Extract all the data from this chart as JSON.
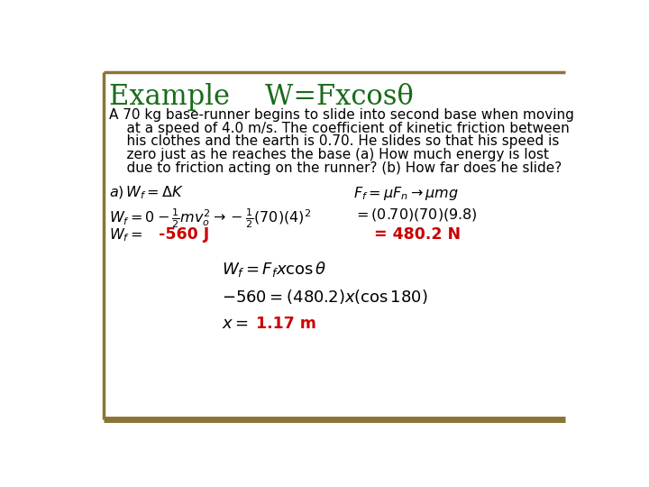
{
  "background_color": "#ffffff",
  "border_color": "#8B7536",
  "title": "Example    W=Fxcosθ",
  "title_color": "#1a6b1a",
  "title_fontsize": 22,
  "body_lines": [
    "A 70 kg base-runner begins to slide into second base when moving",
    "    at a speed of 4.0 m/s. The coefficient of kinetic friction between",
    "    his clothes and the earth is 0.70. He slides so that his speed is",
    "    zero just as he reaches the base (a) How much energy is lost",
    "    due to friction acting on the runner? (b) How far does he slide?"
  ],
  "body_fontsize": 11.0,
  "body_color": "#000000",
  "eq1a": "$a)\\,W_f = \\Delta K$",
  "eq1b": "$F_f = \\mu F_n \\rightarrow \\mu mg$",
  "eq2a": "$W_f = 0 - \\frac{1}{2}mv_o^2 \\rightarrow -\\frac{1}{2}(70)(4)^2$",
  "eq2b": "$= (0.70)(70)(9.8)$",
  "eq3a": "$W_f =$",
  "eq3a_answer": "-560 J",
  "eq3a_answer_color": "#cc0000",
  "eq3b_answer": "= 480.2 N",
  "eq3b_answer_color": "#cc0000",
  "eq4": "$W_f = F_f x\\cos\\theta$",
  "eq5": "$-560 = (480.2)x(\\cos 180)$",
  "eq6_prefix": "$x =$",
  "eq6_answer": "1.17 m",
  "eq6_answer_color": "#cc0000",
  "math_fontsize": 11.5,
  "answer_fontsize": 12.5,
  "big_math_fontsize": 13
}
